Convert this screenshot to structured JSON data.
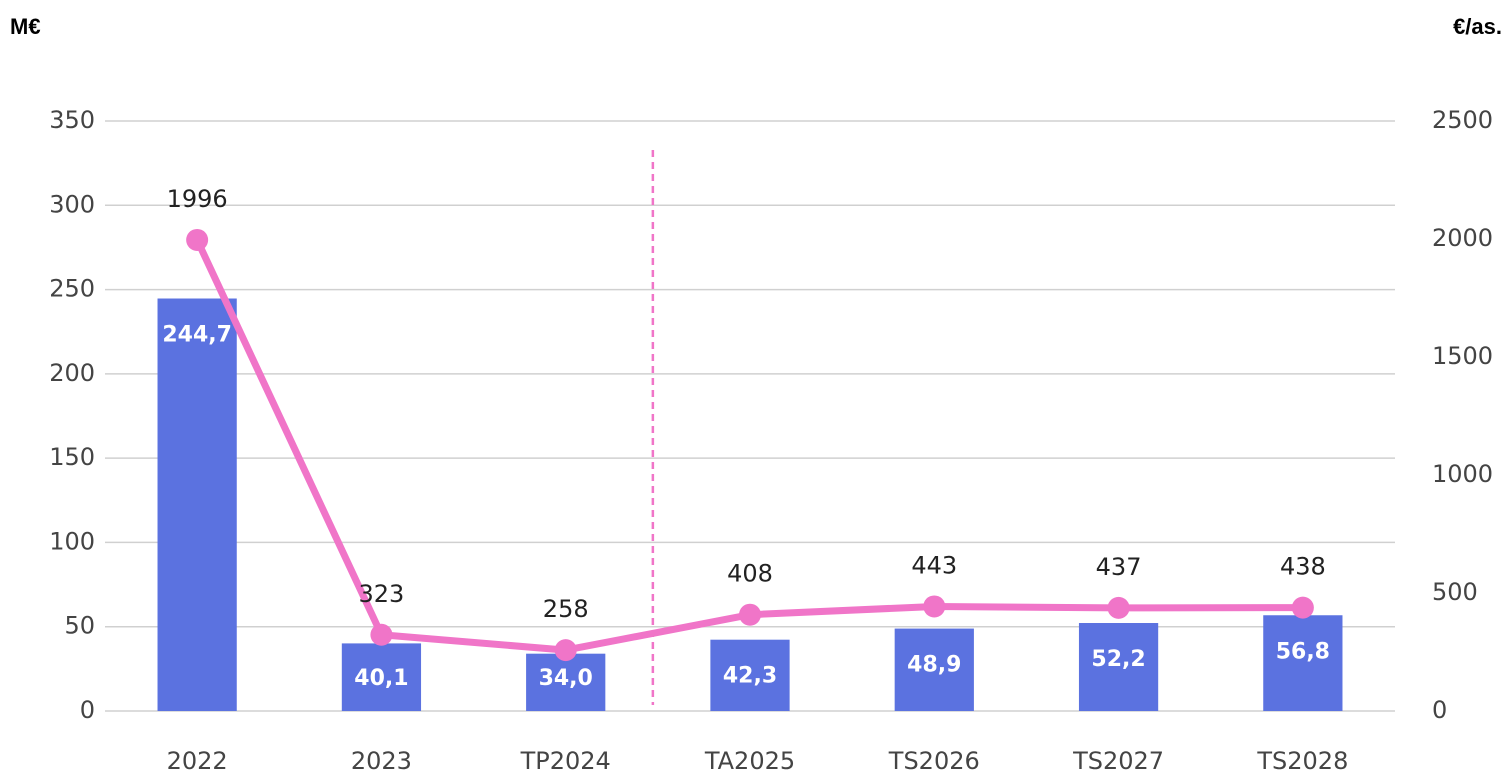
{
  "chart_data": {
    "type": "combo",
    "y_axis_label": "M€",
    "y2_axis_label": "€/as.",
    "categories": [
      "2022",
      "2023",
      "TP2024",
      "TA2025",
      "TS2026",
      "TS2027",
      "TS2028"
    ],
    "series": [
      {
        "type": "bar",
        "color": "#5b72e0",
        "values": [
          244.7,
          40.1,
          34.0,
          42.3,
          48.9,
          52.2,
          56.8
        ],
        "value_labels": [
          "244,7",
          "40,1",
          "34,0",
          "42,3",
          "48,9",
          "52,2",
          "56,8"
        ]
      },
      {
        "type": "line",
        "axis": "y2",
        "color": "#f075c8",
        "values": [
          1996,
          323,
          258,
          408,
          443,
          437,
          438
        ]
      }
    ],
    "ylim": [
      0,
      350
    ],
    "yticks": [
      0,
      50,
      100,
      150,
      200,
      250,
      300,
      350
    ],
    "y2lim": [
      0,
      2500
    ],
    "y2ticks": [
      0,
      500,
      1000,
      1500,
      2000,
      2500
    ],
    "grid": true
  }
}
